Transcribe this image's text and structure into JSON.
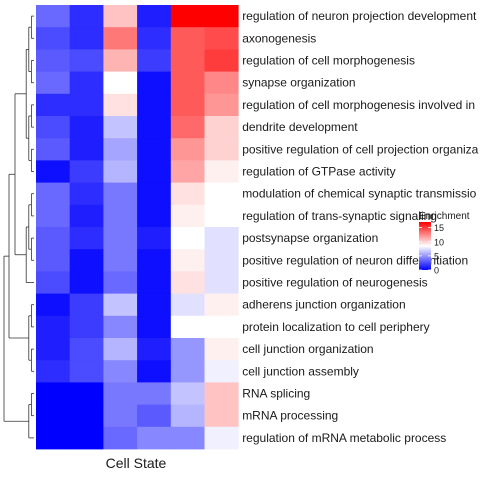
{
  "chart_data": {
    "type": "heatmap",
    "title": "",
    "xlabel": "Cell State",
    "ylabel": "",
    "columns": [
      "",
      "",
      "",
      "",
      "",
      ""
    ],
    "rows": [
      "regulation of neuron projection development",
      "axonogenesis",
      "regulation of cell morphogenesis",
      "synapse organization",
      "regulation of cell morphogenesis involved in",
      "dendrite development",
      "positive regulation of cell projection organiza",
      "regulation of GTPase activity",
      "modulation of chemical synaptic transmissio",
      "regulation of trans-synaptic signaling",
      "postsynapse organization",
      "positive regulation of neuron differentiation",
      "positive regulation of neurogenesis",
      "adherens junction organization",
      "protein localization to cell periphery",
      "cell junction organization",
      "cell junction assembly",
      "RNA splicing",
      "mRNA processing",
      "regulation of mRNA metabolic process"
    ],
    "values": [
      [
        3.5,
        1.5,
        10.5,
        1.0,
        17.0,
        17.0
      ],
      [
        2.5,
        1.5,
        13.0,
        1.5,
        14.0,
        14.5
      ],
      [
        3.0,
        2.5,
        11.0,
        2.0,
        14.0,
        15.0
      ],
      [
        3.5,
        1.5,
        8.5,
        0.5,
        14.0,
        12.5
      ],
      [
        1.5,
        1.5,
        9.5,
        0.5,
        14.0,
        12.0
      ],
      [
        2.5,
        1.0,
        6.5,
        0.5,
        13.5,
        10.0
      ],
      [
        3.0,
        1.0,
        5.5,
        0.5,
        12.0,
        10.0
      ],
      [
        0.5,
        2.0,
        6.0,
        0.5,
        11.5,
        9.0
      ],
      [
        3.5,
        1.5,
        4.0,
        0.5,
        9.5,
        8.5
      ],
      [
        3.5,
        1.0,
        4.0,
        0.5,
        9.0,
        8.5
      ],
      [
        3.0,
        1.5,
        4.0,
        1.0,
        8.5,
        7.5
      ],
      [
        3.0,
        0.5,
        4.0,
        0.5,
        9.0,
        7.5
      ],
      [
        2.5,
        0.5,
        3.5,
        0.5,
        9.5,
        7.5
      ],
      [
        0.5,
        2.0,
        6.5,
        0.5,
        7.5,
        9.0
      ],
      [
        1.0,
        2.0,
        4.5,
        0.5,
        8.5,
        8.5
      ],
      [
        1.0,
        2.5,
        6.0,
        1.0,
        5.0,
        9.0
      ],
      [
        1.5,
        2.5,
        4.5,
        0.5,
        5.0,
        8.0
      ],
      [
        0.0,
        0.0,
        4.0,
        4.0,
        6.5,
        10.5
      ],
      [
        0.0,
        0.0,
        4.0,
        3.0,
        6.0,
        10.5
      ],
      [
        0.0,
        0.0,
        3.5,
        4.5,
        4.5,
        8.0
      ]
    ],
    "color_scale": {
      "min": 0,
      "mid": 8.5,
      "max": 17,
      "low": "#0000ff",
      "mid_color": "#ffffff",
      "high": "#ff0000"
    },
    "legend": {
      "title": "Enrichment",
      "ticks": [
        "15",
        "10",
        "5",
        "0"
      ],
      "tick_values": [
        15,
        10,
        5,
        0
      ],
      "placement": "right"
    },
    "row_dendrogram": "left",
    "row_clusters": [
      {
        "start": 0,
        "end": 7
      },
      {
        "start": 8,
        "end": 12
      },
      {
        "start": 13,
        "end": 16
      },
      {
        "start": 17,
        "end": 19
      }
    ]
  }
}
